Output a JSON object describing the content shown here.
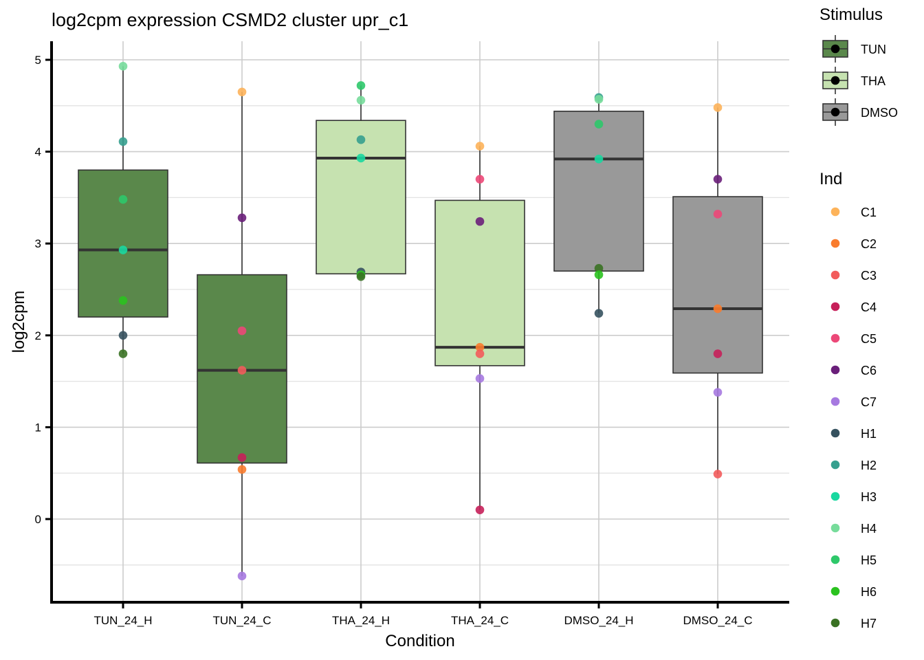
{
  "chart_data": {
    "type": "box",
    "title": "log2cpm expression CSMD2 cluster upr_c1",
    "xlabel": "Condition",
    "ylabel": "log2cpm",
    "ylim": [
      -0.91,
      5.2
    ],
    "yticks": [
      0,
      1,
      2,
      3,
      4,
      5
    ],
    "grid": true,
    "categories": [
      "TUN_24_H",
      "TUN_24_C",
      "THA_24_H",
      "THA_24_C",
      "DMSO_24_H",
      "DMSO_24_C"
    ],
    "fill_legend": {
      "title": "Stimulus",
      "position": "top-right",
      "items": [
        {
          "label": "TUN",
          "color": "#5a884b"
        },
        {
          "label": "THA",
          "color": "#c6e2b0"
        },
        {
          "label": "DMSO",
          "color": "#999999"
        }
      ]
    },
    "color_legend": {
      "title": "Ind",
      "position": "right",
      "items": [
        {
          "label": "C1",
          "color": "#fdb35a"
        },
        {
          "label": "C2",
          "color": "#f97c2d"
        },
        {
          "label": "C3",
          "color": "#f25c5c"
        },
        {
          "label": "C4",
          "color": "#c6205a"
        },
        {
          "label": "C5",
          "color": "#ec4878"
        },
        {
          "label": "C6",
          "color": "#6a1f7a"
        },
        {
          "label": "C7",
          "color": "#a679e0"
        },
        {
          "label": "H1",
          "color": "#36525f"
        },
        {
          "label": "H2",
          "color": "#36a08f"
        },
        {
          "label": "H3",
          "color": "#19d8a0"
        },
        {
          "label": "H4",
          "color": "#77dc9b"
        },
        {
          "label": "H5",
          "color": "#2ec86a"
        },
        {
          "label": "H6",
          "color": "#2ac21f"
        },
        {
          "label": "H7",
          "color": "#3a7224"
        }
      ]
    },
    "boxes": [
      {
        "category": "TUN_24_H",
        "stimulus": "TUN",
        "min": 1.8,
        "q1": 2.2,
        "median": 2.93,
        "q3": 3.8,
        "max": 4.93
      },
      {
        "category": "TUN_24_C",
        "stimulus": "TUN",
        "min": -0.62,
        "q1": 0.61,
        "median": 1.62,
        "q3": 2.66,
        "max": 4.65
      },
      {
        "category": "THA_24_H",
        "stimulus": "THA",
        "min": 2.64,
        "q1": 2.67,
        "median": 3.93,
        "q3": 4.34,
        "max": 4.72
      },
      {
        "category": "THA_24_C",
        "stimulus": "THA",
        "min": 0.1,
        "q1": 1.67,
        "median": 1.87,
        "q3": 3.47,
        "max": 4.06
      },
      {
        "category": "DMSO_24_H",
        "stimulus": "DMSO",
        "min": 2.24,
        "q1": 2.7,
        "median": 3.92,
        "q3": 4.44,
        "max": 4.59
      },
      {
        "category": "DMSO_24_C",
        "stimulus": "DMSO",
        "min": 0.49,
        "q1": 1.59,
        "median": 2.29,
        "q3": 3.51,
        "max": 4.48
      }
    ],
    "points": [
      {
        "category": "TUN_24_H",
        "ind": "H4",
        "value": 4.93
      },
      {
        "category": "TUN_24_H",
        "ind": "H2",
        "value": 4.11
      },
      {
        "category": "TUN_24_H",
        "ind": "H5",
        "value": 3.48
      },
      {
        "category": "TUN_24_H",
        "ind": "H3",
        "value": 2.93
      },
      {
        "category": "TUN_24_H",
        "ind": "H6",
        "value": 2.38
      },
      {
        "category": "TUN_24_H",
        "ind": "H1",
        "value": 2.0
      },
      {
        "category": "TUN_24_H",
        "ind": "H7",
        "value": 1.8
      },
      {
        "category": "TUN_24_C",
        "ind": "C1",
        "value": 4.65
      },
      {
        "category": "TUN_24_C",
        "ind": "C6",
        "value": 3.28
      },
      {
        "category": "TUN_24_C",
        "ind": "C5",
        "value": 2.05
      },
      {
        "category": "TUN_24_C",
        "ind": "C3",
        "value": 1.62
      },
      {
        "category": "TUN_24_C",
        "ind": "C4",
        "value": 0.67
      },
      {
        "category": "TUN_24_C",
        "ind": "C2",
        "value": 0.54
      },
      {
        "category": "TUN_24_C",
        "ind": "C7",
        "value": -0.62
      },
      {
        "category": "THA_24_H",
        "ind": "H5",
        "value": 4.72
      },
      {
        "category": "THA_24_H",
        "ind": "H4",
        "value": 4.56
      },
      {
        "category": "THA_24_H",
        "ind": "H2",
        "value": 4.13
      },
      {
        "category": "THA_24_H",
        "ind": "H3",
        "value": 3.93
      },
      {
        "category": "THA_24_H",
        "ind": "H1",
        "value": 2.69
      },
      {
        "category": "THA_24_H",
        "ind": "H6",
        "value": 2.66
      },
      {
        "category": "THA_24_H",
        "ind": "H7",
        "value": 2.64
      },
      {
        "category": "THA_24_C",
        "ind": "C1",
        "value": 4.06
      },
      {
        "category": "THA_24_C",
        "ind": "C5",
        "value": 3.7
      },
      {
        "category": "THA_24_C",
        "ind": "C6",
        "value": 3.24
      },
      {
        "category": "THA_24_C",
        "ind": "C2",
        "value": 1.87
      },
      {
        "category": "THA_24_C",
        "ind": "C3",
        "value": 1.8
      },
      {
        "category": "THA_24_C",
        "ind": "C7",
        "value": 1.53
      },
      {
        "category": "THA_24_C",
        "ind": "C4",
        "value": 0.1
      },
      {
        "category": "DMSO_24_H",
        "ind": "H2",
        "value": 4.59
      },
      {
        "category": "DMSO_24_H",
        "ind": "H4",
        "value": 4.57
      },
      {
        "category": "DMSO_24_H",
        "ind": "H5",
        "value": 4.3
      },
      {
        "category": "DMSO_24_H",
        "ind": "H3",
        "value": 3.92
      },
      {
        "category": "DMSO_24_H",
        "ind": "H7",
        "value": 2.73
      },
      {
        "category": "DMSO_24_H",
        "ind": "H6",
        "value": 2.66
      },
      {
        "category": "DMSO_24_H",
        "ind": "H1",
        "value": 2.24
      },
      {
        "category": "DMSO_24_C",
        "ind": "C1",
        "value": 4.48
      },
      {
        "category": "DMSO_24_C",
        "ind": "C6",
        "value": 3.7
      },
      {
        "category": "DMSO_24_C",
        "ind": "C5",
        "value": 3.32
      },
      {
        "category": "DMSO_24_C",
        "ind": "C2",
        "value": 2.29
      },
      {
        "category": "DMSO_24_C",
        "ind": "C4",
        "value": 1.8
      },
      {
        "category": "DMSO_24_C",
        "ind": "C7",
        "value": 1.38
      },
      {
        "category": "DMSO_24_C",
        "ind": "C3",
        "value": 0.49
      }
    ]
  }
}
